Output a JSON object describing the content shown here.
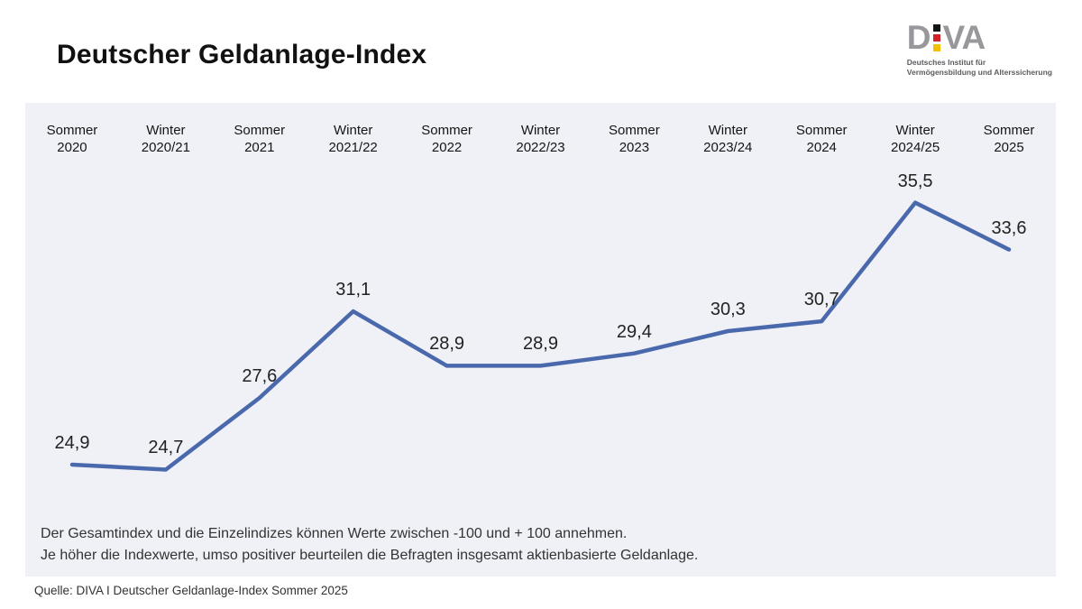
{
  "page": {
    "title": "Deutscher Geldanlage-Index",
    "source_line": "Quelle: DIVA I Deutscher Geldanlage-Index Sommer 2025"
  },
  "logo": {
    "letter_d": "D",
    "letters_va": "VA",
    "subtitle_line1": "Deutsches Institut für",
    "subtitle_line2": "Vermögensbildung und Alterssicherung",
    "text_color": "#98979c",
    "flag_colors": [
      "#141414",
      "#d2232a",
      "#f3c000"
    ]
  },
  "chart_data": {
    "type": "line",
    "title": "Deutscher Geldanlage-Index",
    "categories": [
      [
        "Sommer",
        "2020"
      ],
      [
        "Winter",
        "2020/21"
      ],
      [
        "Sommer",
        "2021"
      ],
      [
        "Winter",
        "2021/22"
      ],
      [
        "Sommer",
        "2022"
      ],
      [
        "Winter",
        "2022/23"
      ],
      [
        "Sommer",
        "2023"
      ],
      [
        "Winter",
        "2023/24"
      ],
      [
        "Sommer",
        "2024"
      ],
      [
        "Winter",
        "2024/25"
      ],
      [
        "Sommer",
        "2025"
      ]
    ],
    "values": [
      24.9,
      24.7,
      27.6,
      31.1,
      28.9,
      28.9,
      29.4,
      30.3,
      30.7,
      35.5,
      33.6
    ],
    "value_labels": [
      "24,9",
      "24,7",
      "27,6",
      "31,1",
      "28,9",
      "28,9",
      "29,4",
      "30,3",
      "30,7",
      "35,5",
      "33,6"
    ],
    "index_scale_range": [
      -100,
      100
    ],
    "line_color": "#4a69ad",
    "panel_background": "#eff1f6",
    "grid": "off",
    "legend": "none",
    "y_axis": "hidden",
    "x_axis_position": "top"
  },
  "footnote": {
    "line1": "Der Gesamtindex und die Einzelindizes können Werte zwischen -100 und + 100 annehmen.",
    "line2": "Je höher die Indexwerte, umso positiver beurteilen die Befragten insgesamt aktienbasierte Geldanlage."
  }
}
